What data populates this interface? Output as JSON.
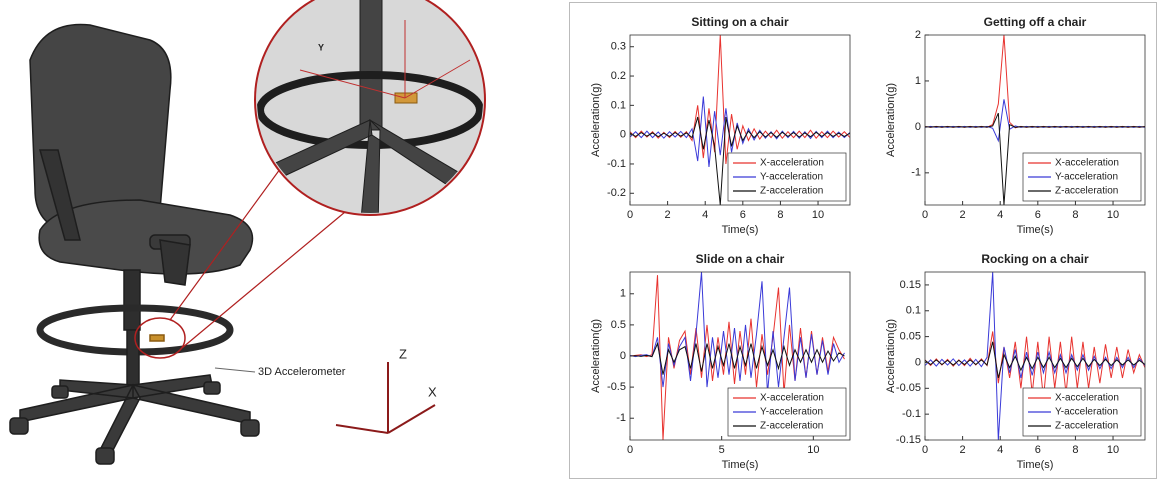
{
  "illustration": {
    "accelerometer_label": "3D Accelerometer",
    "axis_z": "Z",
    "axis_x": "X",
    "axis_y": "Y"
  },
  "chart_data": [
    {
      "type": "line",
      "title": "Sitting on a chair",
      "xlabel": "Time(s)",
      "ylabel": "Acceleration(g)",
      "legend": "lower right",
      "x": [
        0,
        0.3,
        0.6,
        0.9,
        1.2,
        1.5,
        1.8,
        2.1,
        2.4,
        2.7,
        3.0,
        3.3,
        3.6,
        3.9,
        4.2,
        4.5,
        4.8,
        5.1,
        5.4,
        5.7,
        6.0,
        6.3,
        6.6,
        6.9,
        7.2,
        7.5,
        7.8,
        8.1,
        8.4,
        8.7,
        9.0,
        9.3,
        9.6,
        9.9,
        10.2,
        10.5,
        10.8,
        11.1,
        11.4,
        11.7
      ],
      "xlim": [
        0,
        11.7
      ],
      "xticks": [
        0,
        2,
        4,
        6,
        8,
        10
      ],
      "ylim": [
        -0.24,
        0.34
      ],
      "yticks": [
        -0.2,
        -0.1,
        0,
        0.1,
        0.2,
        0.3
      ],
      "series": [
        {
          "name": "X-acceleration",
          "color": "#e8332f",
          "values": [
            0.01,
            -0.01,
            0.012,
            -0.008,
            0.01,
            -0.012,
            0.008,
            -0.01,
            0.011,
            -0.009,
            0.01,
            -0.02,
            0.1,
            -0.08,
            0.09,
            -0.06,
            0.34,
            -0.1,
            0.07,
            -0.05,
            0.03,
            -0.02,
            0.02,
            -0.015,
            0.012,
            -0.01,
            0.015,
            -0.012,
            0.01,
            -0.01,
            0.012,
            -0.01,
            0.015,
            -0.012,
            0.01,
            -0.01,
            0.012,
            -0.008,
            0.01,
            -0.01
          ]
        },
        {
          "name": "Y-acceleration",
          "color": "#3a3ad8",
          "values": [
            -0.008,
            0.01,
            -0.01,
            0.012,
            -0.01,
            0.009,
            -0.012,
            0.01,
            -0.008,
            0.011,
            -0.01,
            0.02,
            -0.09,
            0.13,
            -0.11,
            0.08,
            -0.07,
            0.09,
            -0.06,
            0.04,
            -0.03,
            0.02,
            -0.018,
            0.015,
            -0.012,
            0.01,
            -0.014,
            0.012,
            -0.01,
            0.011,
            -0.012,
            0.01,
            -0.013,
            0.011,
            -0.01,
            0.012,
            -0.01,
            0.009,
            -0.01,
            0.008
          ]
        },
        {
          "name": "Z-acceleration",
          "color": "#111111",
          "values": [
            0.005,
            -0.006,
            0.007,
            -0.005,
            0.006,
            -0.007,
            0.005,
            -0.006,
            0.007,
            -0.005,
            0.006,
            -0.01,
            0.06,
            -0.05,
            0.05,
            -0.04,
            -0.24,
            0.06,
            -0.04,
            0.03,
            -0.02,
            0.012,
            -0.01,
            0.01,
            -0.008,
            0.007,
            -0.009,
            0.008,
            -0.006,
            0.007,
            -0.008,
            0.006,
            -0.007,
            0.008,
            -0.006,
            0.007,
            -0.006,
            0.005,
            -0.006,
            0.005
          ]
        }
      ]
    },
    {
      "type": "line",
      "title": "Getting off a chair",
      "xlabel": "Time(s)",
      "ylabel": "Acceleration(g)",
      "legend": "lower right",
      "x": [
        0,
        0.3,
        0.6,
        0.9,
        1.2,
        1.5,
        1.8,
        2.1,
        2.4,
        2.7,
        3.0,
        3.3,
        3.6,
        3.9,
        4.2,
        4.5,
        4.8,
        5.1,
        5.4,
        5.7,
        6.0,
        6.3,
        6.6,
        6.9,
        7.2,
        7.5,
        7.8,
        8.1,
        8.4,
        8.7,
        9.0,
        9.3,
        9.6,
        9.9,
        10.2,
        10.5,
        10.8,
        11.1,
        11.4,
        11.7
      ],
      "xlim": [
        0,
        11.7
      ],
      "xticks": [
        0,
        2,
        4,
        6,
        8,
        10
      ],
      "ylim": [
        -1.7,
        2
      ],
      "yticks": [
        -1,
        0,
        1,
        2
      ],
      "series": [
        {
          "name": "X-acceleration",
          "color": "#e8332f",
          "values": [
            0.01,
            -0.01,
            0.01,
            -0.01,
            0.01,
            -0.01,
            0.01,
            -0.01,
            0.01,
            -0.01,
            0.01,
            -0.01,
            0.05,
            0.5,
            2.0,
            0.1,
            -0.02,
            0.01,
            -0.01,
            0.01,
            -0.01,
            0.01,
            -0.01,
            0.01,
            -0.01,
            0.01,
            -0.01,
            0.01,
            -0.01,
            0.01,
            -0.01,
            0.01,
            -0.01,
            0.01,
            -0.01,
            0.01,
            -0.01,
            0.01,
            -0.01,
            0.01
          ]
        },
        {
          "name": "Y-acceleration",
          "color": "#3a3ad8",
          "values": [
            -0.01,
            0.01,
            -0.01,
            0.01,
            -0.01,
            0.01,
            -0.01,
            0.01,
            -0.01,
            0.01,
            -0.01,
            0.01,
            -0.03,
            -0.3,
            0.6,
            -0.05,
            0.02,
            -0.01,
            0.01,
            -0.01,
            0.01,
            -0.01,
            0.01,
            -0.01,
            0.01,
            -0.01,
            0.01,
            -0.01,
            0.01,
            -0.01,
            0.01,
            -0.01,
            0.01,
            -0.01,
            0.01,
            -0.01,
            0.01,
            -0.01,
            0.01,
            -0.01
          ]
        },
        {
          "name": "Z-acceleration",
          "color": "#111111",
          "values": [
            0.005,
            -0.005,
            0.005,
            -0.005,
            0.005,
            -0.005,
            0.005,
            -0.005,
            0.005,
            -0.005,
            0.005,
            -0.005,
            0.02,
            0.3,
            -1.7,
            0.05,
            -0.01,
            0.005,
            -0.005,
            0.005,
            -0.005,
            0.005,
            -0.005,
            0.005,
            -0.005,
            0.005,
            -0.005,
            0.005,
            -0.005,
            0.005,
            -0.005,
            0.005,
            -0.005,
            0.005,
            -0.005,
            0.005,
            -0.005,
            0.005,
            -0.005,
            0.005
          ]
        }
      ]
    },
    {
      "type": "line",
      "title": "Slide on a chair",
      "xlabel": "Time(s)",
      "ylabel": "Acceleration(g)",
      "legend": "lower right",
      "x": [
        0,
        0.3,
        0.6,
        0.9,
        1.2,
        1.5,
        1.8,
        2.1,
        2.4,
        2.7,
        3.0,
        3.3,
        3.6,
        3.9,
        4.2,
        4.5,
        4.8,
        5.1,
        5.4,
        5.7,
        6.0,
        6.3,
        6.6,
        6.9,
        7.2,
        7.5,
        7.8,
        8.1,
        8.4,
        8.7,
        9.0,
        9.3,
        9.6,
        9.9,
        10.2,
        10.5,
        10.8,
        11.1,
        11.4,
        11.7
      ],
      "xlim": [
        0,
        12
      ],
      "xticks": [
        0,
        5,
        10
      ],
      "ylim": [
        -1.35,
        1.35
      ],
      "yticks": [
        -1,
        -0.5,
        0,
        0.5,
        1
      ],
      "series": [
        {
          "name": "X-acceleration",
          "color": "#e8332f",
          "values": [
            0,
            0.01,
            0.02,
            -0.01,
            0.02,
            1.3,
            -1.35,
            0.3,
            -0.2,
            0.25,
            0.4,
            -0.3,
            0.45,
            -0.35,
            0.5,
            -0.4,
            0.3,
            -0.3,
            0.55,
            -0.45,
            0.4,
            -0.3,
            0.6,
            -0.5,
            0.35,
            -0.3,
            0.3,
            1.1,
            -0.6,
            0.5,
            -0.4,
            0.45,
            -0.35,
            0.4,
            -0.3,
            0.3,
            -0.25,
            0.3,
            0.1,
            -0.05
          ]
        },
        {
          "name": "Y-acceleration",
          "color": "#3a3ad8",
          "values": [
            0.01,
            -0.01,
            0.01,
            0.02,
            -0.01,
            0.3,
            -0.5,
            0.2,
            -0.15,
            0.15,
            0.3,
            -0.4,
            0.35,
            1.35,
            -0.5,
            0.3,
            -0.35,
            0.4,
            -0.3,
            0.45,
            -0.4,
            0.5,
            -0.35,
            0.35,
            1.2,
            -0.6,
            0.4,
            -0.5,
            0.3,
            1.1,
            -0.4,
            0.3,
            -0.35,
            0.35,
            -0.3,
            0.25,
            -0.3,
            0.2,
            -0.1,
            0.05
          ]
        },
        {
          "name": "Z-acceleration",
          "color": "#111111",
          "values": [
            0,
            0.005,
            -0.005,
            0.01,
            -0.01,
            0.2,
            -0.3,
            0.1,
            -0.1,
            0.1,
            0.15,
            -0.2,
            0.2,
            -0.25,
            0.2,
            -0.2,
            0.15,
            -0.15,
            0.2,
            -0.2,
            0.15,
            -0.15,
            0.2,
            -0.2,
            0.15,
            -0.15,
            0.1,
            -0.2,
            0.15,
            -0.15,
            0.1,
            -0.1,
            0.1,
            -0.1,
            0.1,
            -0.1,
            0.08,
            -0.08,
            0.05,
            0
          ]
        }
      ]
    },
    {
      "type": "line",
      "title": "Rocking on a chair",
      "xlabel": "Time(s)",
      "ylabel": "Acceleration(g)",
      "legend": "lower right",
      "x": [
        0,
        0.3,
        0.6,
        0.9,
        1.2,
        1.5,
        1.8,
        2.1,
        2.4,
        2.7,
        3.0,
        3.3,
        3.6,
        3.9,
        4.2,
        4.5,
        4.8,
        5.1,
        5.4,
        5.7,
        6.0,
        6.3,
        6.6,
        6.9,
        7.2,
        7.5,
        7.8,
        8.1,
        8.4,
        8.7,
        9.0,
        9.3,
        9.6,
        9.9,
        10.2,
        10.5,
        10.8,
        11.1,
        11.4,
        11.7
      ],
      "xlim": [
        0,
        11.7
      ],
      "xticks": [
        0,
        2,
        4,
        6,
        8,
        10
      ],
      "ylim": [
        -0.15,
        0.175
      ],
      "yticks": [
        -0.15,
        -0.1,
        -0.05,
        0,
        0.05,
        0.1,
        0.15
      ],
      "series": [
        {
          "name": "X-acceleration",
          "color": "#e8332f",
          "values": [
            0.005,
            -0.006,
            0.007,
            -0.005,
            0.006,
            -0.007,
            0.005,
            -0.006,
            0.008,
            -0.005,
            0.007,
            -0.006,
            0.06,
            -0.04,
            0.03,
            -0.03,
            0.04,
            -0.05,
            0.05,
            -0.06,
            0.04,
            -0.07,
            0.05,
            -0.05,
            0.04,
            -0.06,
            0.05,
            -0.05,
            0.04,
            -0.05,
            0.03,
            -0.04,
            0.035,
            -0.03,
            0.03,
            -0.03,
            0.025,
            -0.02,
            0.015,
            -0.01
          ]
        },
        {
          "name": "Y-acceleration",
          "color": "#3a3ad8",
          "values": [
            -0.006,
            0.005,
            -0.007,
            0.006,
            -0.005,
            0.007,
            -0.006,
            0.005,
            -0.007,
            0.006,
            -0.008,
            0.01,
            0.175,
            -0.15,
            0.03,
            -0.02,
            0.025,
            -0.03,
            0.02,
            -0.025,
            0.02,
            -0.02,
            0.02,
            -0.02,
            0.015,
            -0.02,
            0.015,
            -0.015,
            0.015,
            -0.015,
            0.012,
            -0.012,
            0.01,
            -0.012,
            0.01,
            -0.01,
            0.01,
            -0.01,
            0.008,
            -0.006
          ]
        },
        {
          "name": "Z-acceleration",
          "color": "#111111",
          "values": [
            0.004,
            -0.004,
            0.005,
            -0.004,
            0.004,
            -0.005,
            0.004,
            -0.004,
            0.005,
            -0.004,
            0.005,
            -0.005,
            0.04,
            -0.03,
            0.015,
            -0.01,
            0.012,
            -0.015,
            0.01,
            -0.012,
            0.01,
            -0.01,
            0.01,
            -0.01,
            0.008,
            -0.01,
            0.008,
            -0.008,
            0.008,
            -0.008,
            0.006,
            -0.006,
            0.006,
            -0.006,
            0.005,
            -0.005,
            0.005,
            -0.005,
            0.004,
            -0.004
          ]
        }
      ]
    }
  ]
}
